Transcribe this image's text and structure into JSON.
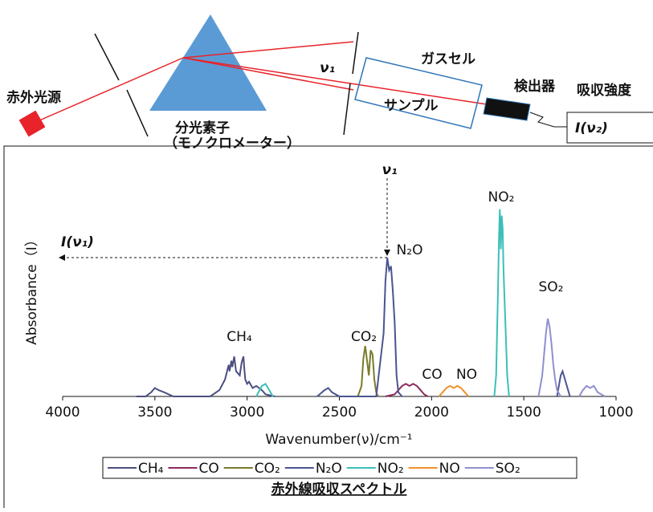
{
  "diagram": {
    "source": "赤外光源",
    "prism": "分光素子",
    "prism_note": "（モノクロメーター）",
    "slit_label": "ν₁",
    "cell": "ガスセル",
    "sample": "サンプル",
    "detector": "検出器",
    "output": "吸収強度",
    "output_value": "I(ν₂)"
  },
  "chart_data": {
    "type": "line",
    "title": "赤外線吸収スペクトル",
    "xlabel": "Wavenumber(ν)/cm⁻¹",
    "ylabel": "Absorbance（I）",
    "xlim": [
      4000,
      1000
    ],
    "xticks": [
      4000,
      3500,
      3000,
      2500,
      2000,
      1500,
      1000
    ],
    "ylim": [
      0,
      1
    ],
    "annotations": [
      "ν₁",
      "I(ν₁)",
      "CH₄",
      "CO₂",
      "N₂O",
      "CO",
      "NO",
      "NO₂",
      "SO₂"
    ],
    "series": [
      {
        "name": "CH₄",
        "color": "#4b4f80",
        "x": [
          3600,
          3550,
          3520,
          3500,
          3480,
          3450,
          3400,
          3200,
          3150,
          3120,
          3100,
          3095,
          3085,
          3080,
          3070,
          3060,
          3040,
          3030,
          3020,
          3015,
          3010,
          3000,
          2990,
          2970,
          2950,
          2920,
          2900,
          2850
        ],
        "values": [
          0,
          0,
          0.02,
          0.04,
          0.03,
          0.02,
          0,
          0,
          0.03,
          0.08,
          0.15,
          0.12,
          0.17,
          0.14,
          0.19,
          0.12,
          0.1,
          0.16,
          0.19,
          0.13,
          0.08,
          0.06,
          0.07,
          0.04,
          0.05,
          0.03,
          0.01,
          0
        ]
      },
      {
        "name": "CO",
        "color": "#8b2a5a",
        "x": [
          2250,
          2200,
          2180,
          2160,
          2140,
          2120,
          2100,
          2080,
          2060,
          2040,
          2020
        ],
        "values": [
          0,
          0.01,
          0.03,
          0.05,
          0.06,
          0.05,
          0.06,
          0.05,
          0.03,
          0.01,
          0
        ]
      },
      {
        "name": "CO₂",
        "color": "#7a7a2a",
        "x": [
          2400,
          2380,
          2370,
          2360,
          2350,
          2340,
          2330,
          2320,
          2310,
          2300,
          2290
        ],
        "values": [
          0,
          0.05,
          0.18,
          0.24,
          0.17,
          0.1,
          0.22,
          0.2,
          0.08,
          0.02,
          0
        ]
      },
      {
        "name": "N₂O",
        "color": "#4a5590",
        "x": [
          2620,
          2580,
          2560,
          2540,
          2500,
          2300,
          2260,
          2250,
          2240,
          2230,
          2220,
          2210,
          2200,
          2190,
          2180,
          2160,
          1400,
          1320,
          1300,
          1290,
          1280,
          1270,
          1250
        ],
        "values": [
          0,
          0.03,
          0.04,
          0.02,
          0,
          0,
          0.3,
          0.55,
          0.66,
          0.6,
          0.62,
          0.5,
          0.35,
          0.1,
          0.02,
          0,
          null,
          0,
          0.1,
          0.12,
          0.09,
          0.06,
          0
        ]
      },
      {
        "name": "NO₂",
        "color": "#3cbfb8",
        "x": [
          2950,
          2920,
          2900,
          2880,
          2860,
          2000,
          1660,
          1650,
          1640,
          1635,
          1630,
          1625,
          1620,
          1615,
          1610,
          1600,
          1590,
          1580
        ],
        "values": [
          0,
          0.05,
          0.06,
          0.03,
          0,
          null,
          0,
          0.1,
          0.5,
          0.75,
          0.89,
          0.7,
          0.86,
          0.8,
          0.6,
          0.35,
          0.1,
          0
        ]
      },
      {
        "name": "NO",
        "color": "#f0902a",
        "x": [
          1960,
          1940,
          1920,
          1900,
          1880,
          1860,
          1840,
          1820,
          1800
        ],
        "values": [
          0,
          0.02,
          0.04,
          0.05,
          0.04,
          0.05,
          0.04,
          0.02,
          0
        ]
      },
      {
        "name": "SO₂",
        "color": "#8f8fcf",
        "x": [
          1420,
          1400,
          1380,
          1370,
          1360,
          1350,
          1340,
          1330,
          1320,
          1300,
          1250,
          1200,
          1180,
          1160,
          1140,
          1120,
          1100,
          1060
        ],
        "values": [
          0,
          0.1,
          0.3,
          0.37,
          0.33,
          0.25,
          0.15,
          0.08,
          0.03,
          0,
          null,
          0,
          0.03,
          0.05,
          0.04,
          0.05,
          0.02,
          0
        ]
      }
    ]
  }
}
